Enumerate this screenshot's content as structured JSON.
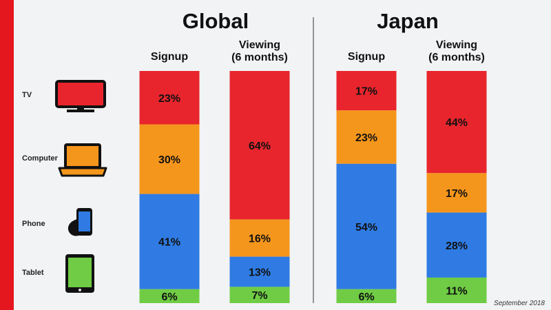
{
  "footnote": "September 2018",
  "colors": {
    "TV": "#e8252d",
    "Computer": "#f5961c",
    "Phone": "#2f7be3",
    "Tablet": "#6fcc44"
  },
  "devices": [
    {
      "label": "TV",
      "icon": "tv-icon"
    },
    {
      "label": "Computer",
      "icon": "laptop-icon"
    },
    {
      "label": "Phone",
      "icon": "phone-icon"
    },
    {
      "label": "Tablet",
      "icon": "tablet-icon"
    }
  ],
  "chart_data": [
    {
      "type": "bar",
      "stacked": true,
      "title": "Global",
      "categories": [
        "Signup",
        "Viewing\n(6 months)"
      ],
      "series": [
        {
          "name": "TV",
          "values": [
            23,
            64
          ]
        },
        {
          "name": "Computer",
          "values": [
            30,
            16
          ]
        },
        {
          "name": "Phone",
          "values": [
            41,
            13
          ]
        },
        {
          "name": "Tablet",
          "values": [
            6,
            7
          ]
        }
      ],
      "ylim": [
        0,
        100
      ],
      "unit": "%"
    },
    {
      "type": "bar",
      "stacked": true,
      "title": "Japan",
      "categories": [
        "Signup",
        "Viewing\n(6 months)"
      ],
      "series": [
        {
          "name": "TV",
          "values": [
            17,
            44
          ]
        },
        {
          "name": "Computer",
          "values": [
            23,
            17
          ]
        },
        {
          "name": "Phone",
          "values": [
            54,
            28
          ]
        },
        {
          "name": "Tablet",
          "values": [
            6,
            11
          ]
        }
      ],
      "ylim": [
        0,
        100
      ],
      "unit": "%"
    }
  ]
}
